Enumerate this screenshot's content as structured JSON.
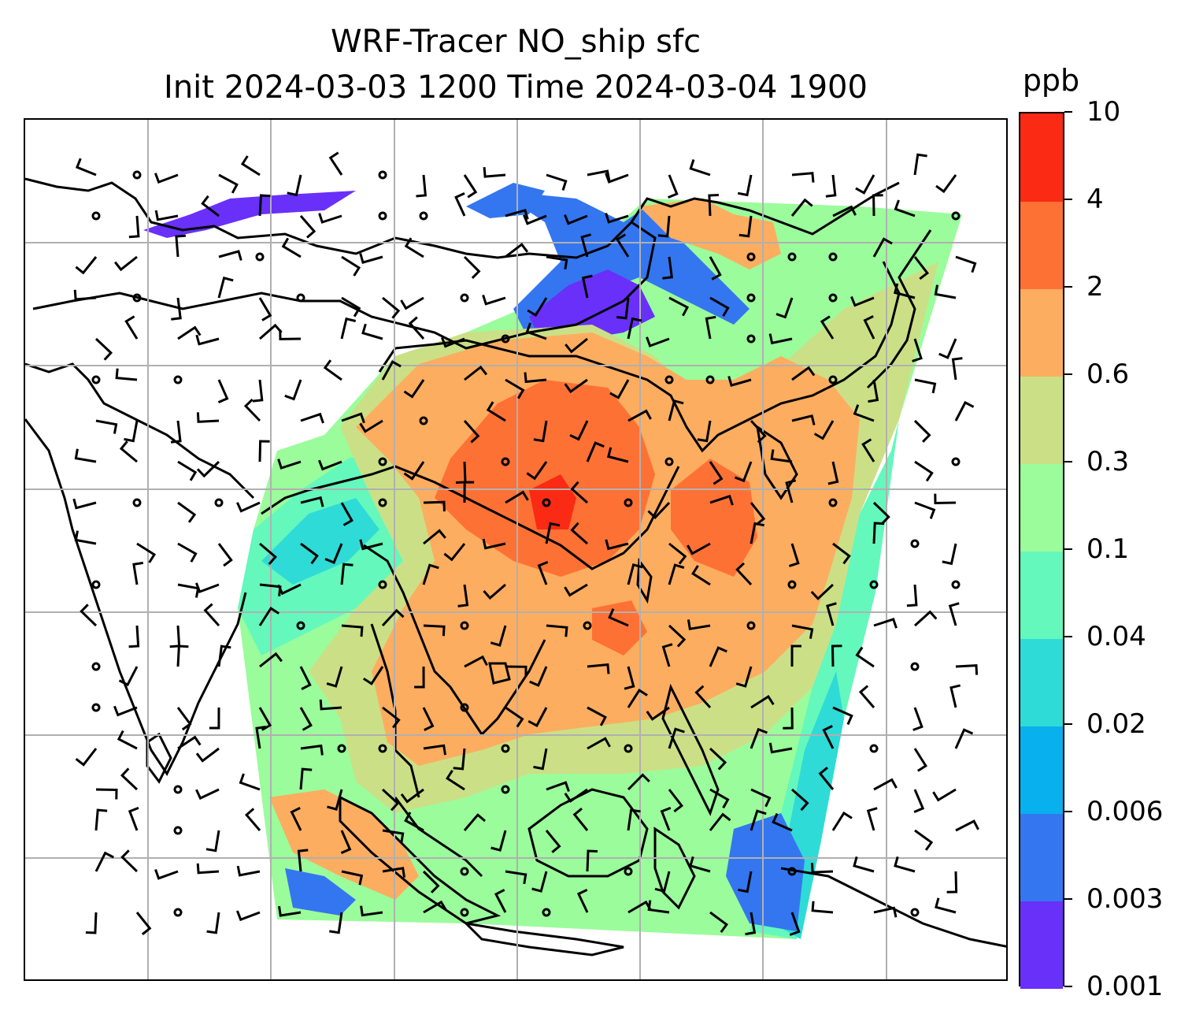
{
  "title": {
    "line1": "WRF-Tracer NO_ship sfc",
    "line2": "Init 2024-03-03 1200 Time 2024-03-04 1900"
  },
  "colorbar": {
    "unit": "ppb",
    "levels": [
      "0.001",
      "0.003",
      "0.006",
      "0.02",
      "0.04",
      "0.1",
      "0.3",
      "0.6",
      "2",
      "4",
      "10"
    ],
    "colors": [
      "#6930fa",
      "#3476f0",
      "#08b0ee",
      "#2fdbd6",
      "#64f8bd",
      "#9bfc9b",
      "#cbe086",
      "#fdad60",
      "#fe7135",
      "#fa2a14"
    ]
  },
  "map": {
    "gridlines": true,
    "coastline_color": "#000000",
    "grid_color": "#b0b0b0",
    "wind_barbs": true,
    "field_colors": {
      "very_low": "#6930fa",
      "low": "#3476f0",
      "mid_low": "#2fdbd6",
      "mid": "#64f8bd",
      "green": "#9bfc9b",
      "yellowgreen": "#cbe086",
      "orange": "#fdad60",
      "redorange": "#fe7135",
      "red": "#fa2a14"
    }
  }
}
